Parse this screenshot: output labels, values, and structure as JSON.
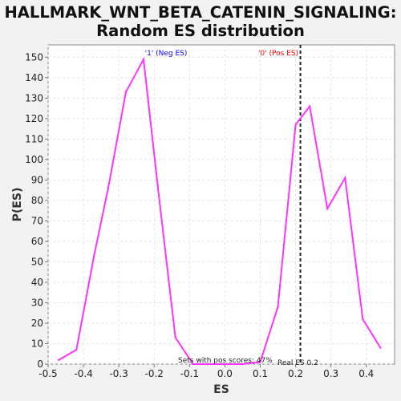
{
  "chart_data": {
    "type": "line",
    "title_line1": "HALLMARK_WNT_BETA_CATENIN_SIGNALING:",
    "title_line2": "Random ES distribution",
    "xlabel": "ES",
    "ylabel": "P(ES)",
    "xlim": [
      -0.5,
      0.48
    ],
    "ylim": [
      0,
      156
    ],
    "xticks": [
      -0.5,
      -0.4,
      -0.3,
      -0.2,
      -0.1,
      0.0,
      0.1,
      0.2,
      0.3,
      0.4
    ],
    "xtick_labels": [
      "-0.5",
      "-0.4",
      "-0.3",
      "-0.2",
      "-0.1",
      "0.0",
      "0.1",
      "0.2",
      "0.3",
      "0.4"
    ],
    "yticks": [
      0,
      10,
      20,
      30,
      40,
      50,
      60,
      70,
      80,
      90,
      100,
      110,
      120,
      130,
      140,
      150
    ],
    "grid": true,
    "line_color": "#ff33ff",
    "x": [
      -0.47,
      -0.42,
      -0.37,
      -0.33,
      -0.28,
      -0.23,
      -0.19,
      -0.14,
      -0.09,
      -0.05,
      0.0,
      0.05,
      0.1,
      0.15,
      0.2,
      0.24,
      0.29,
      0.34,
      0.39,
      0.44
    ],
    "y": [
      2,
      7,
      53,
      86,
      133,
      149,
      87,
      13,
      0,
      0,
      0,
      0,
      1,
      28,
      117,
      126,
      76,
      91,
      22,
      8
    ],
    "real_es": 0.2,
    "annotations": {
      "neg_label": "'1' (Neg ES)",
      "neg_color": "#0000ff",
      "pos_label": "'0' (Pos ES)",
      "pos_color": "#ff0000",
      "pos_scores": "Sets with pos scores: 47%",
      "real_es_label": "Real ES 0.2"
    }
  }
}
